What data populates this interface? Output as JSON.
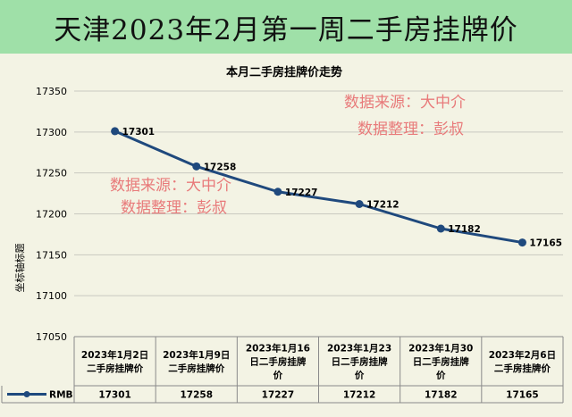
{
  "header": {
    "title": "天津2023年2月第一周二手房挂牌价"
  },
  "watermarks": [
    {
      "line1": "数据来源：大中介",
      "line2": "数据整理：彭叔"
    },
    {
      "line1": "数据来源：大中介",
      "line2": "数据整理：彭叔"
    }
  ],
  "colors": {
    "line": "#1f497d",
    "header_bg": "#9fe0a8",
    "plot_bg": "#f3f3e4",
    "watermark": "#e87a7a"
  },
  "chart_data": {
    "type": "line",
    "title": "本月二手房挂牌价走势",
    "ylabel": "坐标轴标题",
    "xlabel": "",
    "ylim": [
      17050,
      17350
    ],
    "yticks": [
      17050,
      17100,
      17150,
      17200,
      17250,
      17300,
      17350
    ],
    "grid": true,
    "legend": "in data table",
    "categories": [
      [
        "2023年1月2日",
        "二手房挂牌价"
      ],
      [
        "2023年1月9日",
        "二手房挂牌价"
      ],
      [
        "2023年1月16",
        "日二手房挂牌",
        "价"
      ],
      [
        "2023年1月23",
        "日二手房挂牌",
        "价"
      ],
      [
        "2023年1月30",
        "日二手房挂牌",
        "价"
      ],
      [
        "2023年2月6日",
        "二手房挂牌价"
      ]
    ],
    "series": [
      {
        "name": "RMB",
        "values": [
          17301,
          17258,
          17227,
          17212,
          17182,
          17165
        ]
      }
    ]
  }
}
